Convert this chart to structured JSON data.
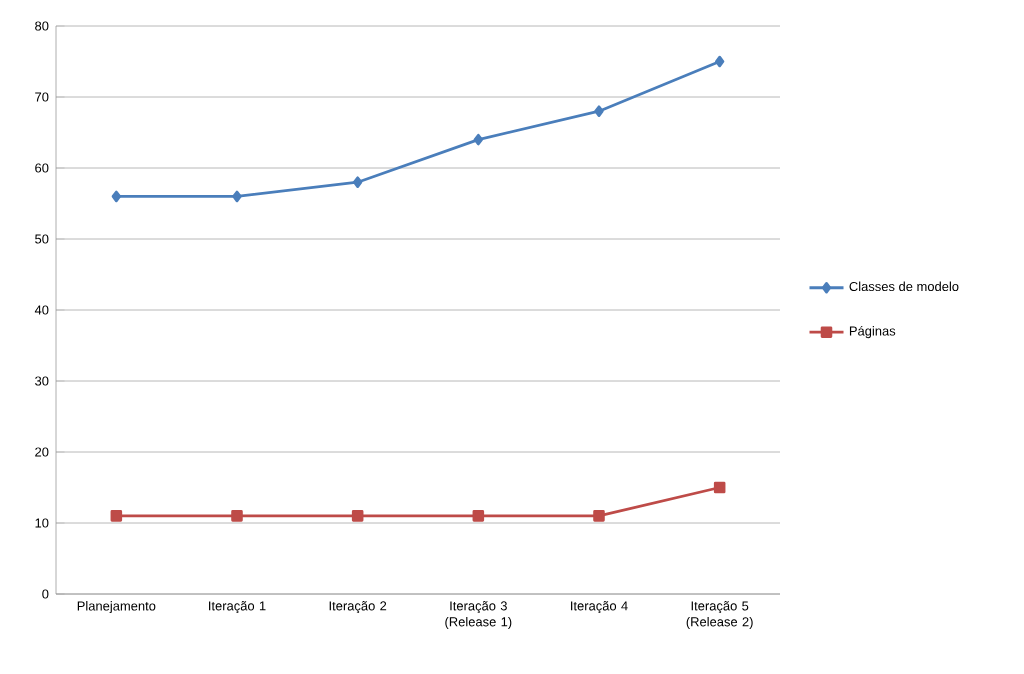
{
  "chart_data": {
    "type": "line",
    "categories": [
      "Planejamento",
      "Iteração 1",
      "Iteração 2",
      "Iteração 3 (Release 1)",
      "Iteração 4",
      "Iteração 5 (Release 2)"
    ],
    "series": [
      {
        "name": "Classes de modelo",
        "color": "#4a7ebb",
        "marker": "diamond",
        "values": [
          56,
          56,
          58,
          64,
          68,
          75
        ]
      },
      {
        "name": "Páginas",
        "color": "#be4b48",
        "marker": "square",
        "values": [
          11,
          11,
          11,
          11,
          11,
          15
        ]
      }
    ],
    "ylim": [
      0,
      80
    ],
    "yticks": [
      0,
      10,
      20,
      30,
      40,
      50,
      60,
      70,
      80
    ],
    "grid": "y",
    "legend": "right",
    "line_style": "solid"
  }
}
